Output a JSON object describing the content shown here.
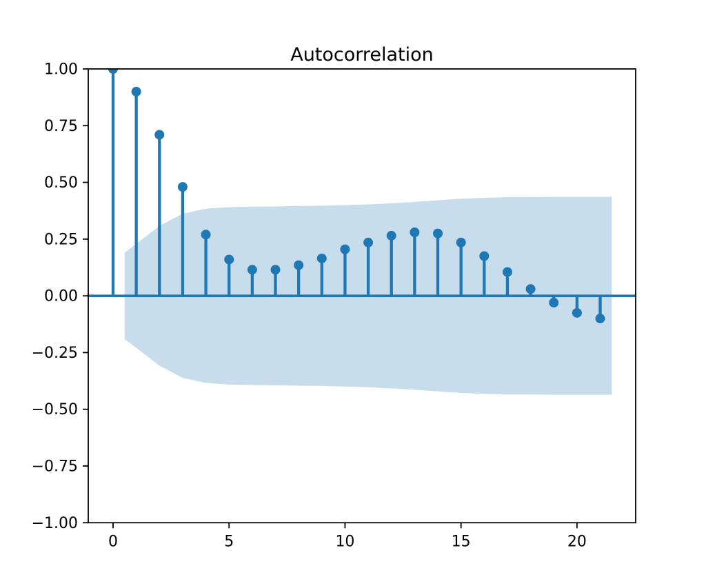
{
  "figure": {
    "background": "#ffffff"
  },
  "chart_data": {
    "type": "stem",
    "title": "Autocorrelation",
    "xlabel": "",
    "ylabel": "",
    "x": [
      0,
      1,
      2,
      3,
      4,
      5,
      6,
      7,
      8,
      9,
      10,
      11,
      12,
      13,
      14,
      15,
      16,
      17,
      18,
      19,
      20,
      21
    ],
    "values": [
      1.0,
      0.9,
      0.71,
      0.48,
      0.27,
      0.16,
      0.115,
      0.115,
      0.135,
      0.165,
      0.205,
      0.235,
      0.265,
      0.28,
      0.275,
      0.235,
      0.175,
      0.105,
      0.03,
      -0.03,
      -0.075,
      -0.1
    ],
    "confidence_band": {
      "symmetric_about_zero": true,
      "x": [
        0.5,
        2,
        3,
        4,
        5,
        6,
        7,
        8,
        9,
        10,
        11,
        12,
        13,
        14,
        15,
        16,
        17,
        18,
        19,
        20,
        21.5
      ],
      "upper": [
        0.19,
        0.308,
        0.362,
        0.384,
        0.391,
        0.393,
        0.394,
        0.396,
        0.397,
        0.4,
        0.403,
        0.408,
        0.414,
        0.421,
        0.428,
        0.432,
        0.435,
        0.435,
        0.436,
        0.436,
        0.436
      ]
    },
    "xlim": [
      -1.07,
      22.53
    ],
    "ylim": [
      -1.0,
      1.0
    ],
    "xticks": [
      {
        "value": 0,
        "label": "0"
      },
      {
        "value": 5,
        "label": "5"
      },
      {
        "value": 10,
        "label": "10"
      },
      {
        "value": 15,
        "label": "15"
      },
      {
        "value": 20,
        "label": "20"
      }
    ],
    "yticks": [
      {
        "value": 1.0,
        "label": "1.00"
      },
      {
        "value": 0.75,
        "label": "0.75"
      },
      {
        "value": 0.5,
        "label": "0.50"
      },
      {
        "value": 0.25,
        "label": "0.25"
      },
      {
        "value": 0.0,
        "label": "0.00"
      },
      {
        "value": -0.25,
        "label": "−0.25"
      },
      {
        "value": -0.5,
        "label": "−0.50"
      },
      {
        "value": -0.75,
        "label": "−0.75"
      },
      {
        "value": -1.0,
        "label": "−1.00"
      }
    ],
    "legend": null,
    "grid": false,
    "colors": {
      "stem": "#1f77b4",
      "marker": "#1f77b4",
      "zero_line": "#1f77b4",
      "band_fill": "#1f77b4",
      "band_opacity": 0.25,
      "spine": "#000000"
    }
  }
}
